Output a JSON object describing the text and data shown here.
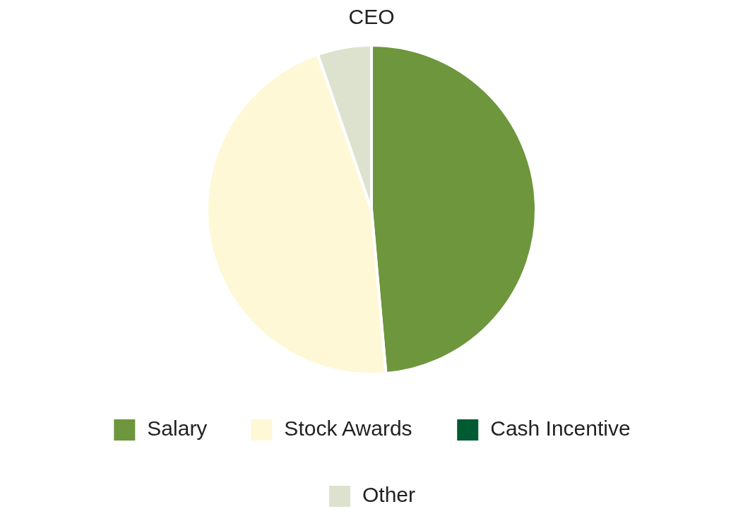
{
  "chart_data": {
    "type": "pie",
    "title": "CEO",
    "categories": [
      "Salary",
      "Stock Awards",
      "Cash Incentive",
      "Other"
    ],
    "values": [
      48.6,
      46.1,
      0,
      5.3
    ],
    "colors": [
      "#6e963c",
      "#fef8d6",
      "#005a32",
      "#dde2cf"
    ],
    "legend": "bottom"
  }
}
